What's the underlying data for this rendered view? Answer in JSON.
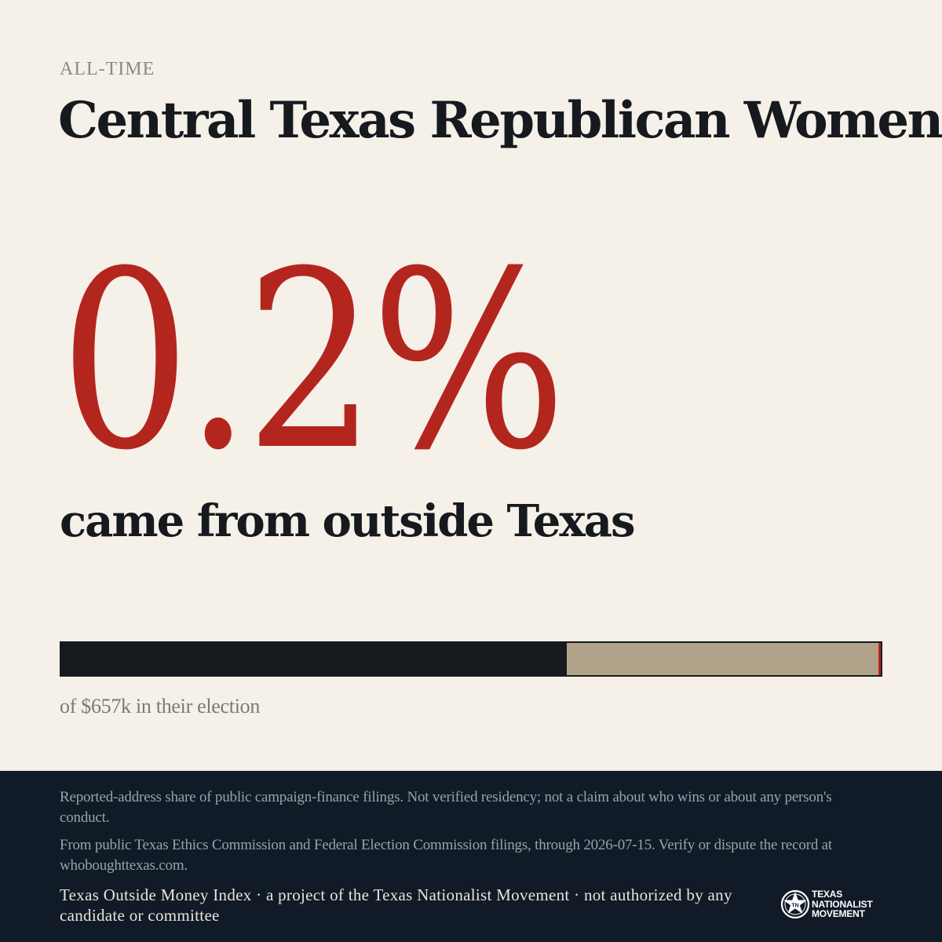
{
  "header": {
    "eyebrow": "ALL-TIME",
    "organization": "Central Texas Republican Women"
  },
  "headline": {
    "percent_text": "0.2%",
    "tagline": "came from outside Texas"
  },
  "progress_bar": {
    "dark_fraction": 0.617,
    "tan_fraction": 0.381,
    "outside_fraction": 0.002,
    "colors": {
      "dark": "#161a1f",
      "tan": "#b0a38a",
      "outside": "#b3261e"
    }
  },
  "bar_caption": "of $657k in their election",
  "footer": {
    "disclaimer": "Reported-address share of public campaign-finance filings. Not verified residency; not a claim about who wins or about any person's conduct.",
    "source": "From public Texas Ethics Commission and Federal Election Commission filings, through 2026-07-15. Verify or dispute the record at whoboughttexas.com.",
    "credit": "Texas Outside Money Index · a project of the Texas Nationalist Movement · not authorized by any candidate or committee",
    "logo": {
      "icon": "star-seal-icon",
      "line1": "TEXAS",
      "line2": "NATIONALIST",
      "line3": "MOVEMENT"
    }
  },
  "colors": {
    "background": "#f5f0e8",
    "accent_red": "#b3261e",
    "ink": "#161a1f",
    "footer_bg": "#111b27"
  }
}
